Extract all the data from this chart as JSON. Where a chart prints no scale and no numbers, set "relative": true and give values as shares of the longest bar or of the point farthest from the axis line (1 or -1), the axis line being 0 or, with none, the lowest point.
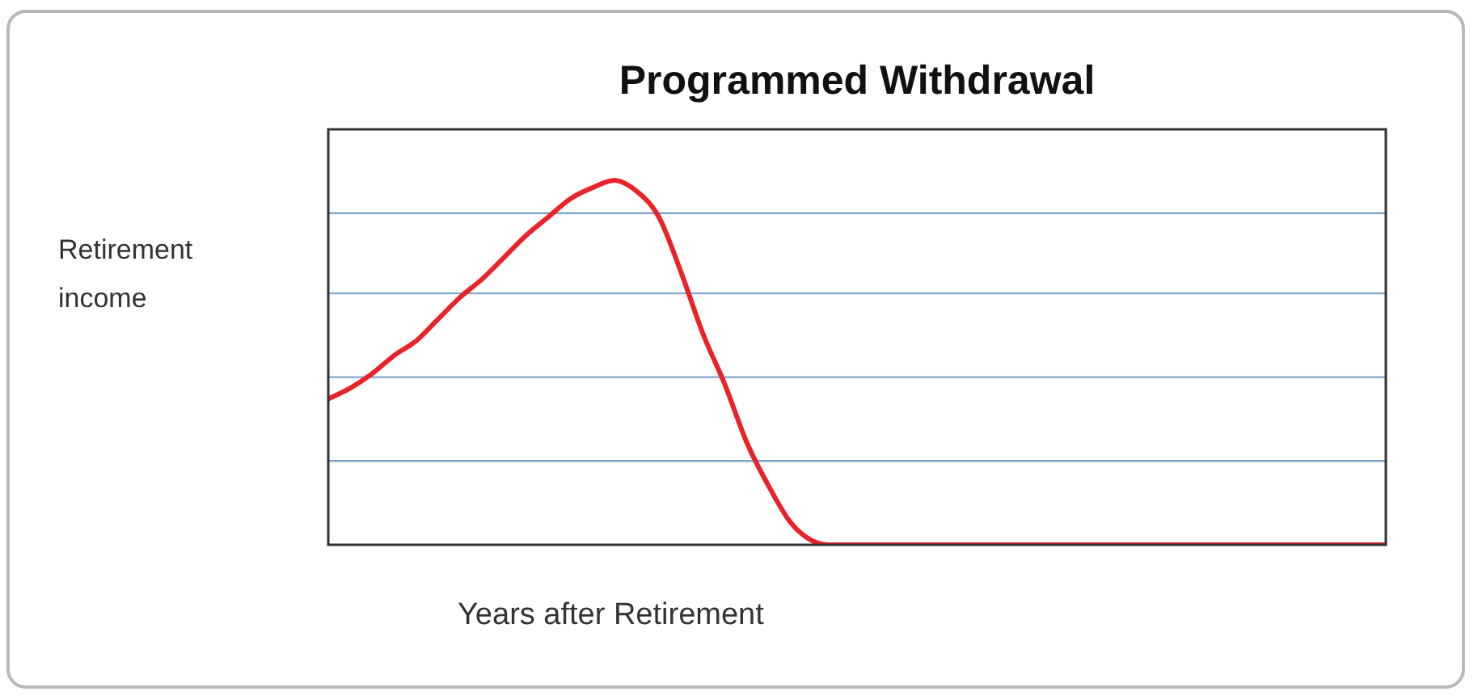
{
  "chart_data": {
    "type": "line",
    "title": "Programmed Withdrawal",
    "xlabel": "Years after Retirement",
    "ylabel": "Retirement income",
    "relative": true,
    "legend": false,
    "marker": "none",
    "ref_lines": [
      {
        "axis": "y",
        "value": 0.23,
        "color": "#7fa6c8"
      },
      {
        "axis": "y",
        "value": 0.46,
        "color": "#7fa6c8"
      },
      {
        "axis": "y",
        "value": 0.69,
        "color": "#7fa6c8"
      },
      {
        "axis": "y",
        "value": 0.91,
        "color": "#7fa6c8"
      }
    ],
    "categories": [
      null,
      null,
      null,
      null,
      null,
      null,
      null,
      null,
      null,
      null,
      null,
      null,
      null,
      null,
      null,
      null,
      null,
      null,
      null,
      null,
      null,
      null,
      null,
      null,
      null,
      null,
      null,
      null,
      null,
      null,
      null,
      null,
      null,
      null,
      null,
      null,
      null,
      null,
      null,
      null,
      null,
      null,
      null,
      null,
      null,
      null,
      null,
      null,
      null
    ],
    "series": [
      {
        "color": "#e8242a",
        "values": [
          0.4,
          0.43,
          0.47,
          0.52,
          0.56,
          0.62,
          0.68,
          0.73,
          0.79,
          0.85,
          0.9,
          0.95,
          0.98,
          1.0,
          0.97,
          0.9,
          0.75,
          0.58,
          0.44,
          0.28,
          0.16,
          0.06,
          0.01,
          0,
          0,
          0,
          0,
          0,
          0,
          0,
          0,
          0,
          0,
          0,
          0,
          0,
          0,
          0,
          0,
          0,
          0,
          0,
          0,
          0,
          0,
          0,
          0,
          0,
          0
        ]
      }
    ]
  }
}
